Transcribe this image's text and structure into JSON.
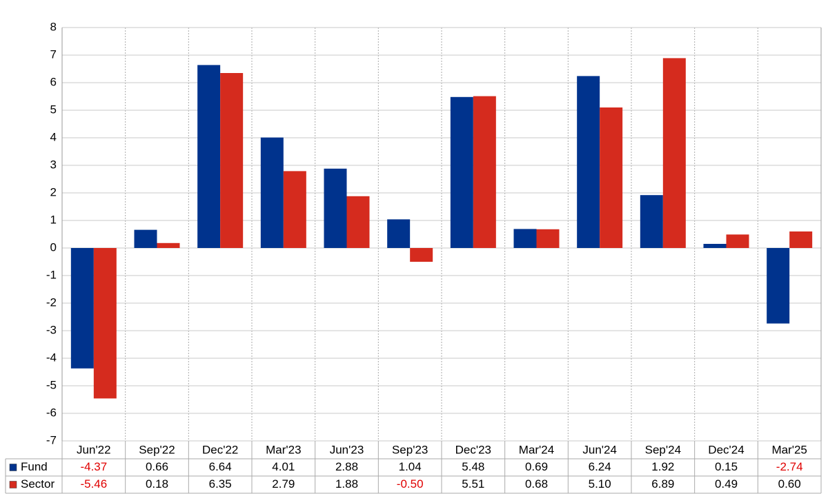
{
  "chart_data": {
    "type": "bar",
    "categories": [
      "Jun'22",
      "Sep'22",
      "Dec'22",
      "Mar'23",
      "Jun'23",
      "Sep'23",
      "Dec'23",
      "Mar'24",
      "Jun'24",
      "Sep'24",
      "Dec'24",
      "Mar'25"
    ],
    "series": [
      {
        "name": "Fund",
        "color": "#00338d",
        "values": [
          -4.37,
          0.66,
          6.64,
          4.01,
          2.88,
          1.04,
          5.48,
          0.69,
          6.24,
          1.92,
          0.15,
          -2.74
        ],
        "value_labels": [
          "-4.37",
          "0.66",
          "6.64",
          "4.01",
          "2.88",
          "1.04",
          "5.48",
          "0.69",
          "6.24",
          "1.92",
          "0.15",
          "-2.74"
        ]
      },
      {
        "name": "Sector",
        "color": "#d52b1e",
        "values": [
          -5.46,
          0.18,
          6.35,
          2.79,
          1.88,
          -0.5,
          5.51,
          0.68,
          5.1,
          6.89,
          0.49,
          0.6
        ],
        "value_labels": [
          "-5.46",
          "0.18",
          "6.35",
          "2.79",
          "1.88",
          "-0.50",
          "5.51",
          "0.68",
          "5.10",
          "6.89",
          "0.49",
          "0.60"
        ]
      }
    ],
    "ylim": [
      -7,
      8
    ],
    "yticks": [
      -7,
      -6,
      -5,
      -4,
      -3,
      -2,
      -1,
      0,
      1,
      2,
      3,
      4,
      5,
      6,
      7,
      8
    ],
    "grid": true
  }
}
